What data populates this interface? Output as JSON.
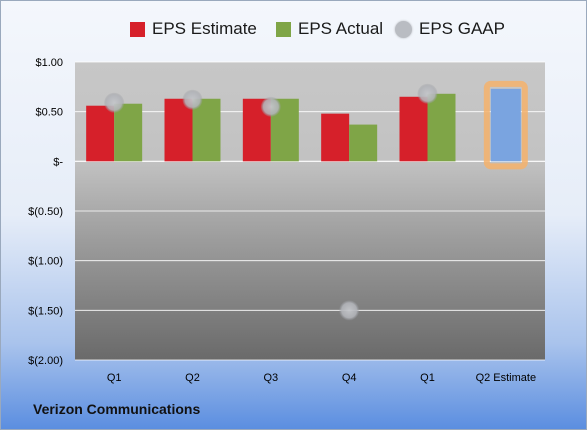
{
  "chart_data": {
    "type": "bar",
    "categories": [
      "Q1",
      "Q2",
      "Q3",
      "Q4",
      "Q1",
      "Q2 Estimate"
    ],
    "series": [
      {
        "name": "EPS Estimate",
        "color": "#d6202a",
        "values": [
          0.56,
          0.63,
          0.63,
          0.48,
          0.65,
          null
        ]
      },
      {
        "name": "EPS Actual",
        "color": "#7fa547",
        "values": [
          0.58,
          0.63,
          0.63,
          0.37,
          0.68,
          null
        ]
      },
      {
        "name": "EPS GAAP",
        "color": "#b9bcc2",
        "marker": "circle",
        "values": [
          0.59,
          0.62,
          0.55,
          -1.5,
          0.68,
          null
        ]
      }
    ],
    "forecast": {
      "category": "Q2 Estimate",
      "value": 0.73,
      "color": "#7aa4e0",
      "highlight": "#f5b26b"
    },
    "y_ticks": [
      "$(2.00)",
      "$(1.50)",
      "$(1.00)",
      "$(0.50)",
      "$-",
      "$0.50",
      "$1.00"
    ],
    "y_tick_values": [
      -2.0,
      -1.5,
      -1.0,
      -0.5,
      0,
      0.5,
      1.0
    ],
    "ylim": [
      -2.0,
      1.0
    ],
    "grid": true,
    "legend_position": "top",
    "footer": "Verizon Communications"
  }
}
